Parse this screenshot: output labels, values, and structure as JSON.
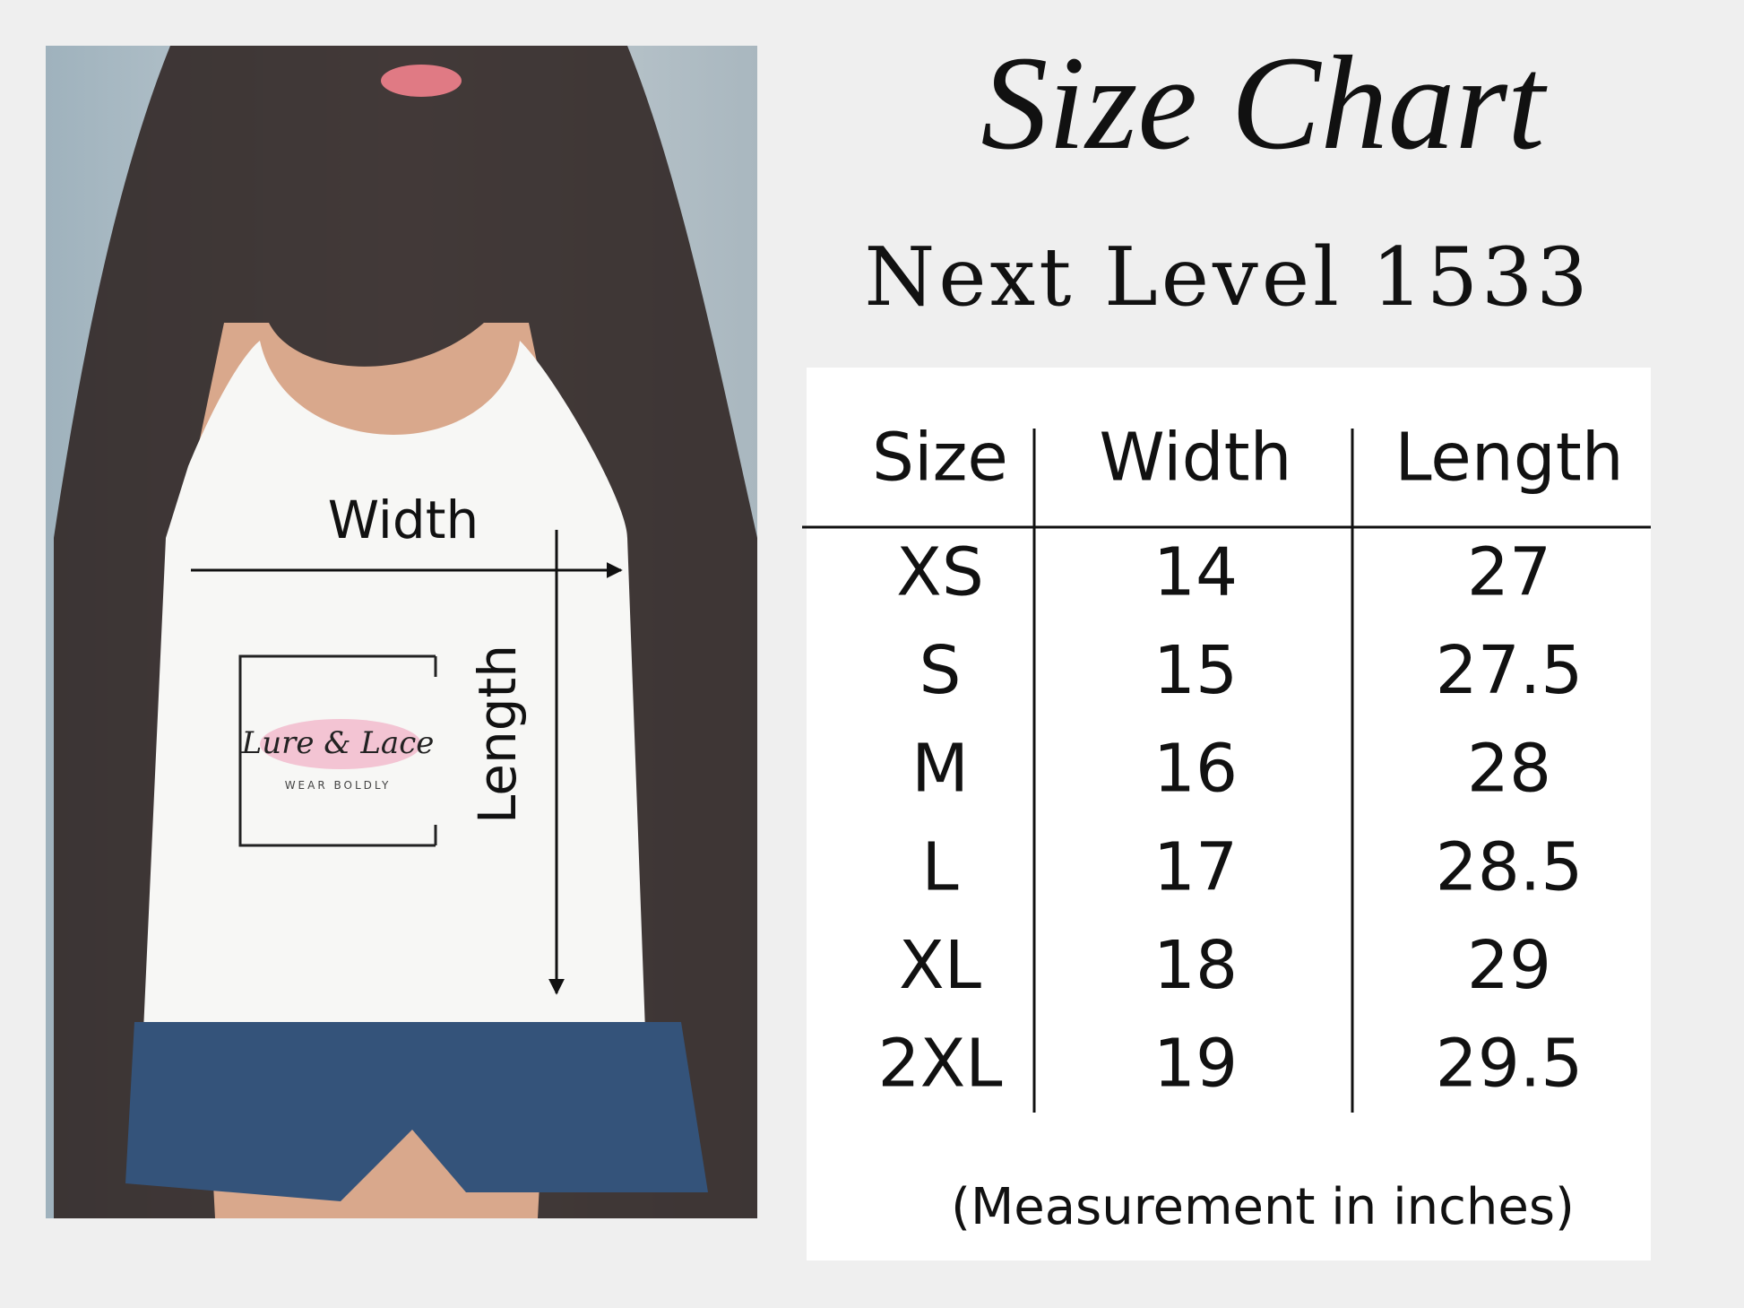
{
  "header": {
    "title": "Size Chart",
    "subtitle": "Next Level 1533"
  },
  "photo": {
    "width_label": "Width",
    "length_label": "Length",
    "logo": {
      "name": "Lure & Lace",
      "tagline": "WEAR BOLDLY"
    }
  },
  "table": {
    "columns": [
      "Size",
      "Width",
      "Length"
    ],
    "rows": [
      [
        "XS",
        14,
        27
      ],
      [
        "S",
        15,
        27.5
      ],
      [
        "M",
        16,
        28
      ],
      [
        "L",
        17,
        28.5
      ],
      [
        "XL",
        18,
        29
      ],
      [
        "2XL",
        19,
        29.5
      ]
    ]
  },
  "note": "(Measurement in inches)"
}
